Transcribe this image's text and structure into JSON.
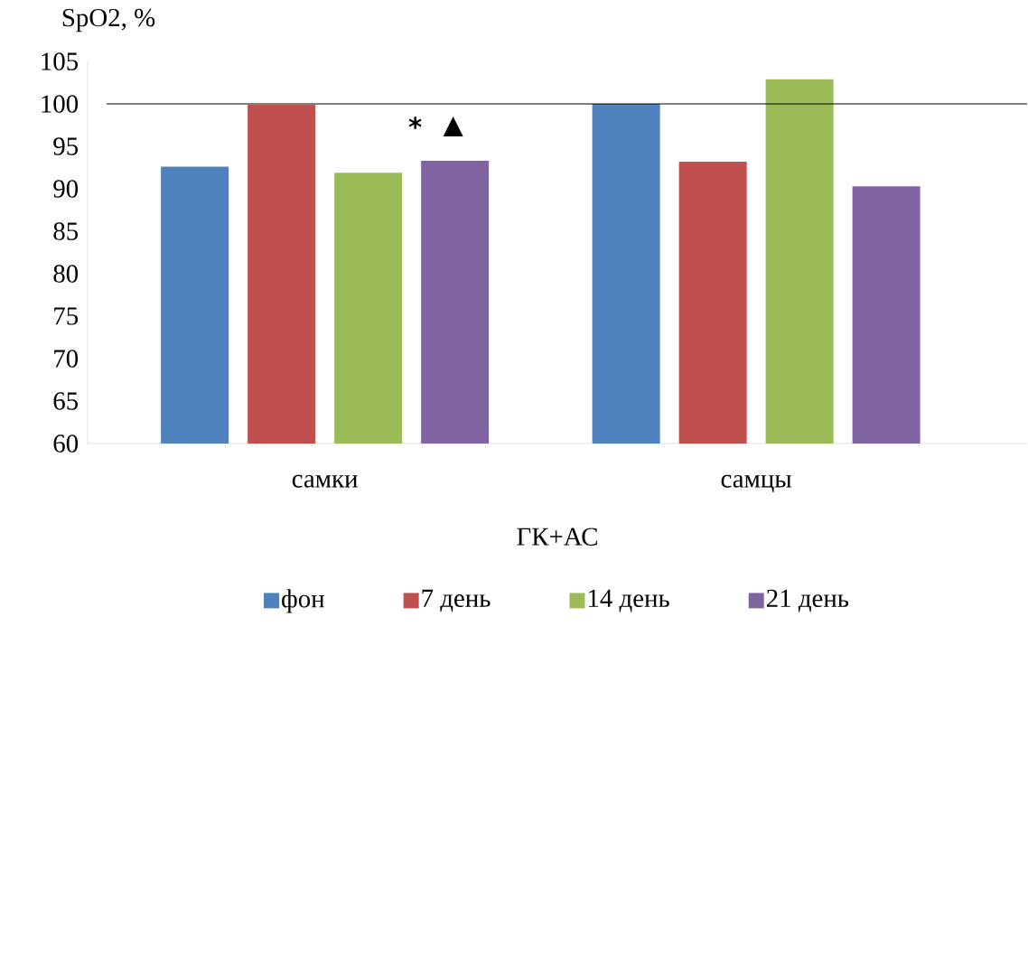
{
  "chart_data": {
    "type": "bar",
    "ylabel": "SpO2, %",
    "xlabel": "ГК+АС",
    "categories": [
      "самки",
      "самцы"
    ],
    "series": [
      {
        "name": "фон",
        "color": "#4f81bd",
        "values": [
          92.6,
          100
        ]
      },
      {
        "name": "7 день",
        "color": "#c0504d",
        "values": [
          99.9,
          93.2
        ]
      },
      {
        "name": "14 день",
        "color": "#9bbb59",
        "values": [
          91.9,
          102.9
        ]
      },
      {
        "name": "21 день",
        "color": "#8064a2",
        "values": [
          93.3,
          90.3
        ]
      }
    ],
    "ylim": [
      60,
      105
    ],
    "yticks": [
      60,
      65,
      70,
      75,
      80,
      85,
      90,
      95,
      100,
      105
    ],
    "ref_lines": [
      {
        "axis": "y",
        "value": 100,
        "color": "#000000"
      }
    ],
    "annotations": [
      "*",
      "▲"
    ],
    "legend": "bottom",
    "grid": false
  }
}
